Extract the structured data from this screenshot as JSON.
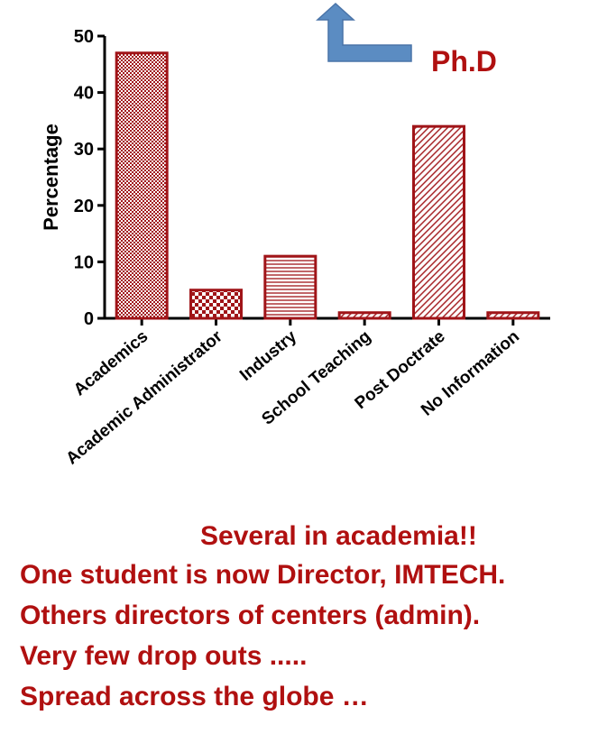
{
  "chart_data": {
    "type": "bar",
    "categories": [
      "Academics",
      "Academic Administrator",
      "Industry",
      "School Teaching",
      "Post Doctrate",
      "No Information"
    ],
    "values": [
      47,
      5,
      11,
      1,
      34,
      1
    ],
    "patterns": [
      "checker-fine",
      "checker-coarse",
      "horizontal-lines",
      "diagonal-lines",
      "diagonal-lines",
      "diagonal-lines"
    ],
    "ylabel": "Percentage",
    "ylim": [
      0,
      50
    ],
    "yticks": [
      0,
      10,
      20,
      30,
      40,
      50
    ],
    "grid": false,
    "bar_color": "#a01418"
  },
  "annotation": {
    "label": "Ph.D",
    "arrow_icon": "bent-arrow-up-icon",
    "arrow_color": "#5b8cc2"
  },
  "notes": {
    "headline": "Several in academia!!",
    "lines": [
      "One student is now Director, IMTECH.",
      "Others directors of centers (admin).",
      "Very few drop outs .....",
      "Spread across the globe …"
    ]
  },
  "text_color": "#b01010"
}
